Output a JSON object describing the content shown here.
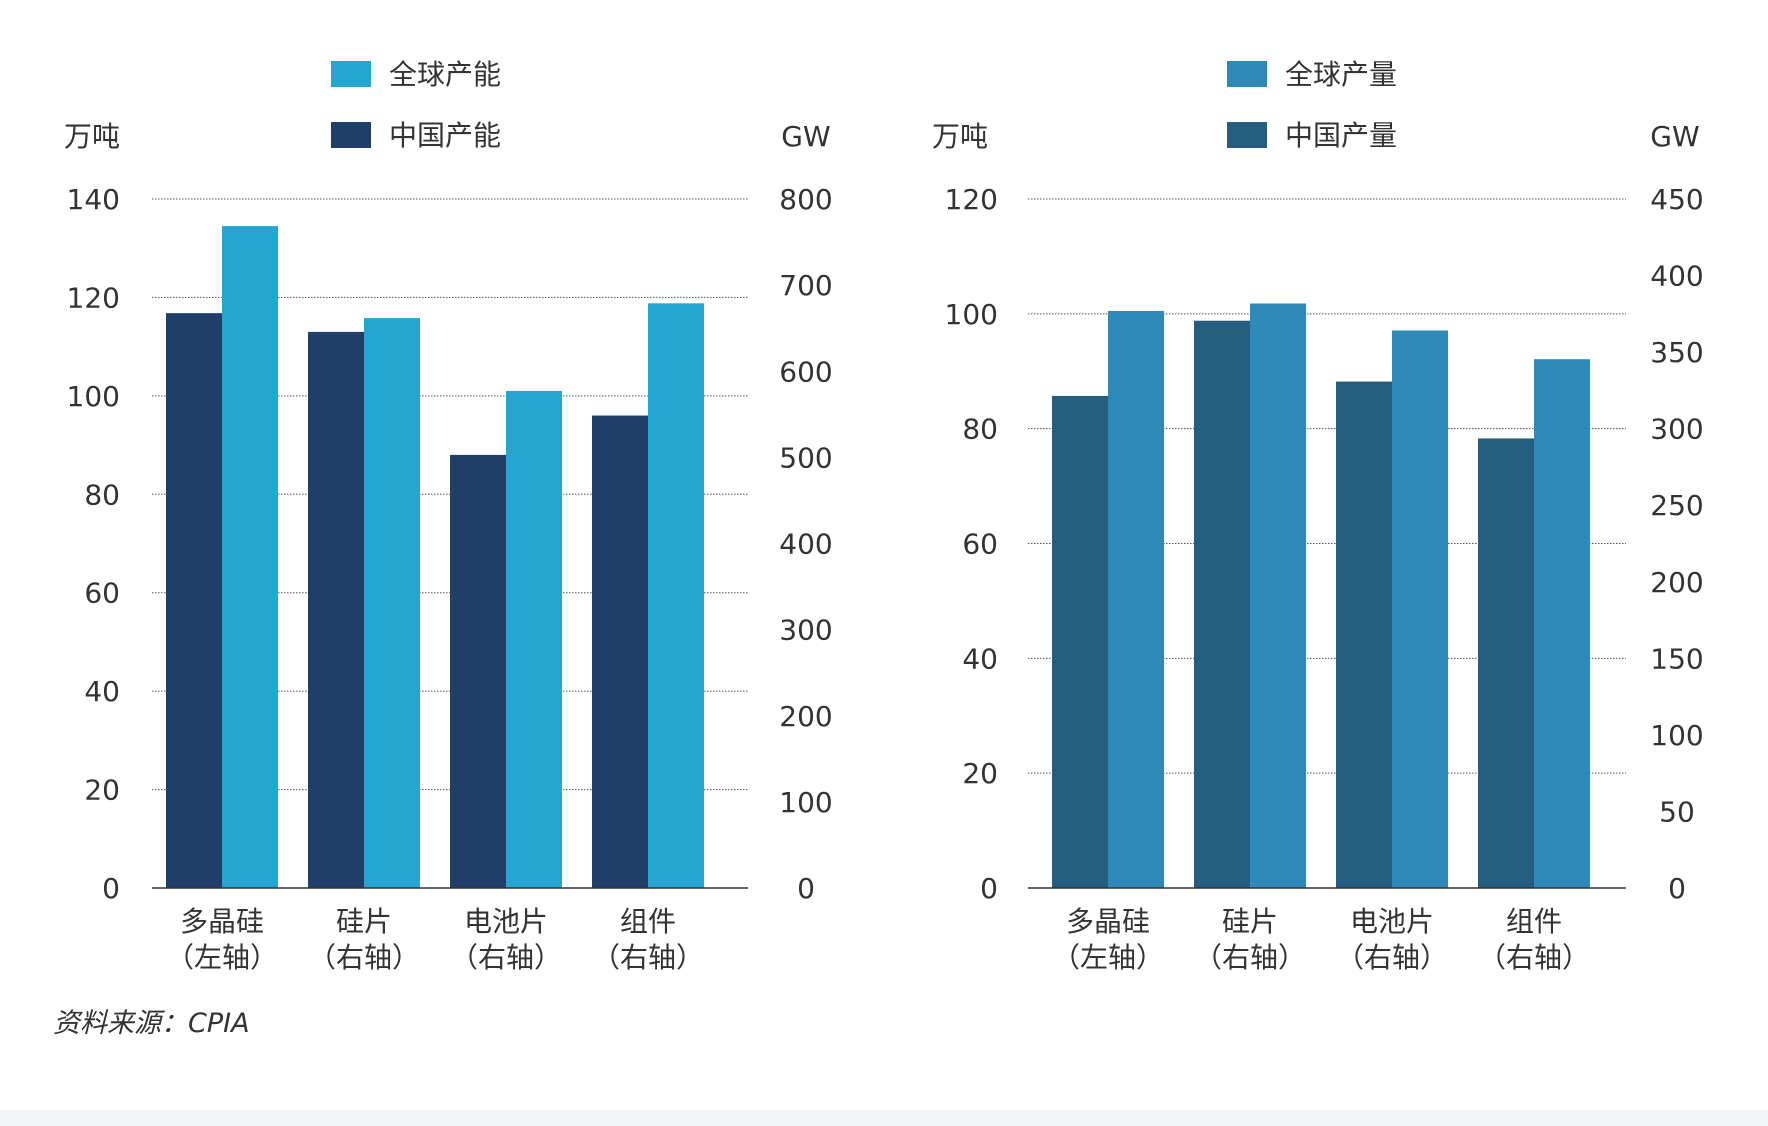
{
  "source_text": "资料来源：CPIA",
  "chart_data": [
    {
      "type": "bar",
      "categories": [
        "多晶硅",
        "硅片",
        "电池片",
        "组件"
      ],
      "category_sublabels": [
        "（左轴）",
        "（右轴）",
        "（右轴）",
        "（右轴）"
      ],
      "left_unit": "万吨",
      "right_unit": "GW",
      "ylim_left": [
        0,
        140
      ],
      "yticks_left": [
        0,
        20,
        40,
        60,
        80,
        100,
        120,
        140
      ],
      "ylim_right": [
        0,
        800
      ],
      "yticks_right": [
        0,
        100,
        200,
        300,
        400,
        500,
        600,
        700,
        800
      ],
      "grid": true,
      "legend_position": "top",
      "series": [
        {
          "name": "中国产能",
          "color": "#1f3f69",
          "values_left_axis": [
            116.8,
            113,
            88,
            96
          ],
          "values_native": [
            116.8,
            646,
            503,
            549
          ]
        },
        {
          "name": "全球产能",
          "color": "#23a6cf",
          "values_left_axis": [
            134.5,
            115.8,
            101,
            118.8
          ],
          "values_native": [
            134.5,
            662,
            577,
            679
          ]
        }
      ]
    },
    {
      "type": "bar",
      "categories": [
        "多晶硅",
        "硅片",
        "电池片",
        "组件"
      ],
      "category_sublabels": [
        "（左轴）",
        "（右轴）",
        "（右轴）",
        "（右轴）"
      ],
      "left_unit": "万吨",
      "right_unit": "GW",
      "ylim_left": [
        0,
        120
      ],
      "yticks_left": [
        0,
        20,
        40,
        60,
        80,
        100,
        120
      ],
      "ylim_right": [
        0,
        450
      ],
      "yticks_right": [
        0,
        50,
        100,
        150,
        200,
        250,
        300,
        350,
        400,
        450
      ],
      "grid": true,
      "legend_position": "top",
      "series": [
        {
          "name": "中国产量",
          "color": "#245d80",
          "values_left_axis": [
            85.7,
            98.8,
            88.2,
            78.3
          ],
          "values_native": [
            85.7,
            370.5,
            330.8,
            293.6
          ]
        },
        {
          "name": "全球产量",
          "color": "#2e88b8",
          "values_left_axis": [
            100.5,
            101.8,
            97.1,
            92.1
          ],
          "values_native": [
            100.5,
            381.8,
            364.1,
            345.4
          ]
        }
      ]
    }
  ]
}
